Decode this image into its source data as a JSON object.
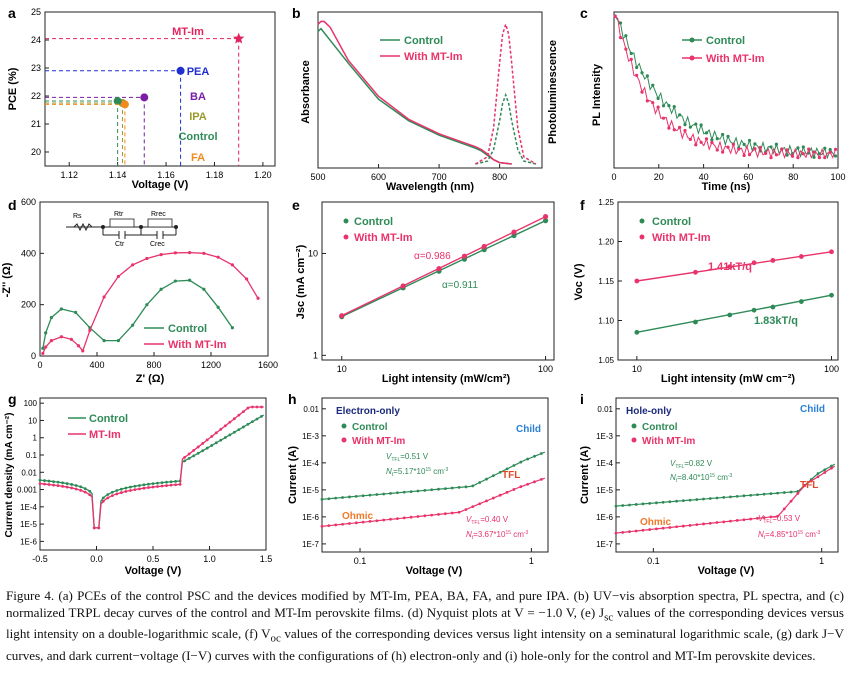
{
  "colors": {
    "control": "#2e8b57",
    "mt": "#e8336b",
    "pea": "#1f2fd1",
    "ba": "#7a1fa2",
    "ipa": "#9a9a2a",
    "fa": "#f28a1d",
    "mtstar": "#e0245e",
    "navy": "#1b2a7a",
    "orange": "#f07a2a",
    "blue_label": "#2a7fd4",
    "red_label": "#e04a2a"
  },
  "chart_data": [
    {
      "id": "a",
      "panel_label": "a",
      "type": "scatter",
      "xlabel": "Voltage (V)",
      "ylabel": "PCE (%)",
      "x_ticks": [
        "1.12",
        "1.14",
        "1.16",
        "1.18",
        "1.20"
      ],
      "y_ticks": [
        "20",
        "21",
        "22",
        "23",
        "24",
        "25"
      ],
      "xlim": [
        1.11,
        1.205
      ],
      "ylim": [
        19.5,
        25.0
      ],
      "points": [
        {
          "label": "MT-Im",
          "x": 1.19,
          "y": 24.05,
          "color": "#e0245e",
          "marker": "star"
        },
        {
          "label": "PEA",
          "x": 1.166,
          "y": 22.9,
          "color": "#1f2fd1",
          "marker": "circle"
        },
        {
          "label": "BA",
          "x": 1.151,
          "y": 21.95,
          "color": "#7a1fa2",
          "marker": "circle"
        },
        {
          "label": "IPA",
          "x": 1.142,
          "y": 21.75,
          "color": "#9a9a2a",
          "marker": "circle"
        },
        {
          "label": "Control",
          "x": 1.14,
          "y": 21.82,
          "color": "#2e8b57",
          "marker": "circle"
        },
        {
          "label": "FA",
          "x": 1.143,
          "y": 21.7,
          "color": "#f28a1d",
          "marker": "circle"
        }
      ]
    },
    {
      "id": "b",
      "panel_label": "b",
      "type": "line",
      "xlabel": "Wavelength (nm)",
      "ylabel_left": "Absorbance",
      "ylabel_right": "Photoluminescence",
      "x_ticks": [
        "500",
        "600",
        "700",
        "800"
      ],
      "xlim": [
        500,
        870
      ],
      "series": [
        {
          "name": "Control",
          "kind": "absorbance",
          "x": [
            500,
            505,
            520,
            550,
            600,
            650,
            700,
            740,
            760,
            770,
            780,
            790,
            800,
            820
          ],
          "y": [
            0.92,
            0.94,
            0.86,
            0.7,
            0.45,
            0.3,
            0.2,
            0.14,
            0.11,
            0.09,
            0.06,
            0.03,
            0.01,
            0.0
          ]
        },
        {
          "name": "With MT-Im",
          "kind": "absorbance",
          "x": [
            500,
            505,
            510,
            520,
            550,
            600,
            650,
            700,
            740,
            760,
            770,
            780,
            790,
            800,
            820
          ],
          "y": [
            0.97,
            0.99,
            0.99,
            0.95,
            0.72,
            0.47,
            0.31,
            0.21,
            0.15,
            0.12,
            0.1,
            0.07,
            0.03,
            0.01,
            0.0
          ]
        },
        {
          "name": "Control",
          "kind": "pl",
          "x": [
            760,
            780,
            790,
            800,
            805,
            810,
            815,
            820,
            830,
            840,
            860
          ],
          "y": [
            0.0,
            0.02,
            0.1,
            0.3,
            0.42,
            0.48,
            0.42,
            0.3,
            0.1,
            0.02,
            0.0
          ]
        },
        {
          "name": "With MT-Im",
          "kind": "pl",
          "x": [
            760,
            780,
            790,
            800,
            805,
            810,
            815,
            820,
            830,
            840,
            860
          ],
          "y": [
            0.0,
            0.05,
            0.25,
            0.7,
            0.9,
            0.97,
            0.9,
            0.7,
            0.25,
            0.05,
            0.0
          ]
        }
      ]
    },
    {
      "id": "c",
      "panel_label": "c",
      "type": "scatter",
      "xlabel": "Time (ns)",
      "ylabel": "PL Intensity",
      "x_ticks": [
        "0",
        "20",
        "40",
        "60",
        "80",
        "100"
      ],
      "xlim": [
        0,
        100
      ],
      "series": [
        {
          "name": "Control",
          "tau": 22
        },
        {
          "name": "With MT-Im",
          "tau": 16
        }
      ]
    },
    {
      "id": "d",
      "panel_label": "d",
      "type": "line",
      "xlabel": "Z' (Ω)",
      "ylabel": "-Z'' (Ω)",
      "x_ticks": [
        "0",
        "400",
        "800",
        "1200",
        "1600"
      ],
      "y_ticks": [
        "0",
        "200",
        "400",
        "600"
      ],
      "xlim": [
        0,
        1600
      ],
      "ylim": [
        0,
        600
      ],
      "series": [
        {
          "name": "Control",
          "x": [
            20,
            40,
            80,
            150,
            250,
            350,
            450,
            550,
            650,
            750,
            850,
            950,
            1050,
            1150,
            1250,
            1350
          ],
          "y": [
            30,
            90,
            150,
            183,
            170,
            110,
            60,
            60,
            120,
            200,
            260,
            292,
            295,
            260,
            190,
            110
          ]
        },
        {
          "name": "With MT-Im",
          "x": [
            20,
            40,
            80,
            150,
            220,
            270,
            300,
            350,
            450,
            550,
            650,
            750,
            850,
            950,
            1050,
            1150,
            1250,
            1350,
            1450,
            1530
          ],
          "y": [
            10,
            35,
            60,
            75,
            65,
            40,
            20,
            100,
            230,
            310,
            355,
            380,
            395,
            402,
            403,
            400,
            385,
            355,
            300,
            225
          ]
        }
      ],
      "circuit_labels": [
        "Rs",
        "Rtr",
        "Ctr",
        "Rrec",
        "Crec"
      ]
    },
    {
      "id": "e",
      "panel_label": "e",
      "type": "scatter",
      "xlabel": "Light intensity (mW/cm²)",
      "ylabel": "Jsc (mA cm⁻²)",
      "x_ticks": [
        "10",
        "100"
      ],
      "y_ticks": [
        "1",
        "10"
      ],
      "xlim": [
        8,
        100
      ],
      "series": [
        {
          "name": "Control",
          "x": [
            10,
            20,
            30,
            40,
            50,
            70,
            100
          ],
          "y": [
            2.4,
            4.6,
            6.7,
            8.8,
            10.9,
            15.0,
            21.0
          ]
        },
        {
          "name": "With MT-Im",
          "x": [
            10,
            20,
            30,
            40,
            50,
            70,
            100
          ],
          "y": [
            2.45,
            4.8,
            7.1,
            9.4,
            11.7,
            16.2,
            23.0
          ]
        }
      ],
      "annotations": [
        "α=0.986",
        "α=0.911"
      ]
    },
    {
      "id": "f",
      "panel_label": "f",
      "type": "scatter",
      "xlabel": "Light intensity (mW cm⁻²)",
      "ylabel": "Voc (V)",
      "x_ticks": [
        "10",
        "100"
      ],
      "y_ticks": [
        "1.05",
        "1.10",
        "1.15",
        "1.20",
        "1.25"
      ],
      "xlim": [
        8,
        100
      ],
      "ylim": [
        1.05,
        1.25
      ],
      "series": [
        {
          "name": "Control",
          "x": [
            10,
            20,
            30,
            40,
            50,
            70,
            100
          ],
          "y": [
            1.085,
            1.098,
            1.107,
            1.113,
            1.117,
            1.124,
            1.132
          ]
        },
        {
          "name": "With MT-Im",
          "x": [
            10,
            20,
            30,
            40,
            50,
            70,
            100
          ],
          "y": [
            1.15,
            1.161,
            1.168,
            1.173,
            1.176,
            1.181,
            1.187
          ]
        }
      ],
      "annotations": [
        "1.41kT/q",
        "1.83kT/q"
      ]
    },
    {
      "id": "g",
      "panel_label": "g",
      "type": "line",
      "xlabel": "Voltage (V)",
      "ylabel": "Current density (mA cm⁻²)",
      "x_ticks": [
        "-0.5",
        "0.0",
        "0.5",
        "1.0",
        "1.5"
      ],
      "y_ticks": [
        "1E-6",
        "1E-5",
        "1E-4",
        "0.001",
        "0.01",
        "0.1",
        "1",
        "10",
        "100"
      ],
      "series": [
        {
          "name": "Control"
        },
        {
          "name": "MT-Im"
        }
      ]
    },
    {
      "id": "h",
      "panel_label": "h",
      "type": "line",
      "xlabel": "Voltage (V)",
      "ylabel": "Current (A)",
      "title": "Electron-only",
      "x_ticks": [
        "0.1",
        "1"
      ],
      "y_ticks": [
        "1E-7",
        "1E-6",
        "1E-5",
        "1E-4",
        "1E-3",
        "0.01"
      ],
      "series": [
        {
          "name": "Control"
        },
        {
          "name": "With MT-Im"
        }
      ],
      "annotations": [
        "Child",
        "TFL",
        "Ohmic",
        "V_TFL=0.51 V",
        "Nt=5.17*10^15 cm^-3",
        "V_TFL=0.40 V",
        "Nt=3.67*10^15 cm^-3"
      ]
    },
    {
      "id": "i",
      "panel_label": "i",
      "type": "line",
      "xlabel": "Voltage (V)",
      "ylabel": "Current (A)",
      "title": "Hole-only",
      "x_ticks": [
        "0.1",
        "1"
      ],
      "y_ticks": [
        "1E-7",
        "1E-6",
        "1E-5",
        "1E-4",
        "1E-3",
        "0.01"
      ],
      "series": [
        {
          "name": "Control"
        },
        {
          "name": "With MT-Im"
        }
      ],
      "annotations": [
        "Child",
        "TFL",
        "Ohmic",
        "V_TFL=0.82 V",
        "Nt=8.40*10^15 cm^-3",
        "V_TFL=0.53 V",
        "Nt=4.85*10^15 cm^-3"
      ]
    }
  ],
  "text": {
    "a_labels": [
      "MT-Im",
      "PEA",
      "BA",
      "IPA",
      "Control",
      "FA"
    ],
    "legend_control": "Control",
    "legend_mt": "With MT-Im",
    "legend_mt_short": "MT-Im",
    "e_alpha1": "α=0.986",
    "e_alpha2": "α=0.911",
    "f_ann1": "1.41kT/q",
    "f_ann2": "1.83kT/q",
    "h_title": "Electron-only",
    "i_title": "Hole-only",
    "child": "Child",
    "tfl": "TFL",
    "ohmic": "Ohmic",
    "h_vtfl1": "=0.51 V",
    "h_nt1": "=5.17*10",
    "h_vtfl2": "=0.40 V",
    "h_nt2": "=3.67*10",
    "i_vtfl1": "=0.82 V",
    "i_nt1": "=8.40*10",
    "i_vtfl2": "=0.53 V",
    "i_nt2": "=4.85*10",
    "exp15": "15",
    "cm3": " cm",
    "m3": "-3"
  },
  "caption": {
    "p1": "Figure 4. (a) PCEs of the control PSC and the devices modified by MT-Im, PEA, BA, FA, and pure IPA. (b) UV−vis absorption spectra, PL spectra, and (c) normalized TRPL decay curves of the control and MT-Im perovskite films. (d) Nyquist plots at V = −1.0 V, (e) J",
    "p1b": "sc",
    "p2": " values of the corresponding devices versus light intensity on a double-logarithmic scale, (f) V",
    "p2b": "oc",
    "p3": " values of the corresponding devices versus light intensity on a seminatural logarithmic scale, (g) dark J−V curves, and dark current−voltage (I−V) curves with the configurations of (h) electron-only and (i) hole-only for the control and MT-Im perovskite devices."
  }
}
